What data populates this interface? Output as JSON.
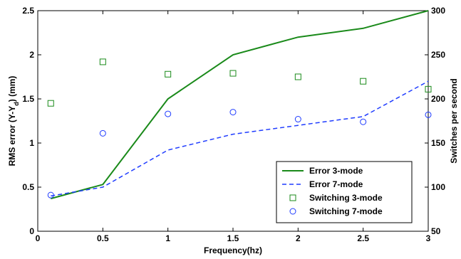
{
  "chart_data": {
    "type": "line",
    "xlabel": "Frequency(hz)",
    "ylabel_left": "RMS error (Y-Yₑ) (mm)",
    "ylabel_left_main": "RMS error (Y-Y",
    "ylabel_left_sub": "d",
    "ylabel_left_tail": ") (mm)",
    "ylabel_right": "Switches per second",
    "xlim": [
      0,
      3
    ],
    "ylim_left": [
      0,
      2.5
    ],
    "ylim_right": [
      50,
      300
    ],
    "x_ticks": [
      "0",
      "0.5",
      "1",
      "1.5",
      "2",
      "2.5",
      "3"
    ],
    "y_left_ticks": [
      "0",
      "0.5",
      "1",
      "1.5",
      "2",
      "2.5"
    ],
    "y_right_ticks": [
      "50",
      "100",
      "150",
      "200",
      "250",
      "300"
    ],
    "grid": false,
    "legend_position": "bottom-right",
    "series": [
      {
        "name": "Error 3-mode",
        "axis": "left",
        "style": "solid",
        "color": "#1a8a1a",
        "x": [
          0.1,
          0.5,
          1,
          1.5,
          2,
          2.5,
          3
        ],
        "y": [
          0.37,
          0.53,
          1.5,
          2.0,
          2.2,
          2.3,
          2.5
        ]
      },
      {
        "name": "Error 7-mode",
        "axis": "left",
        "style": "dashed",
        "color": "#1f3cff",
        "x": [
          0.1,
          0.5,
          1,
          1.5,
          2,
          2.5,
          3
        ],
        "y": [
          0.4,
          0.5,
          0.92,
          1.1,
          1.2,
          1.3,
          1.7
        ]
      },
      {
        "name": "Switching 3-mode",
        "axis": "right",
        "style": "square",
        "color": "#1a8a1a",
        "x": [
          0.1,
          0.5,
          1,
          1.5,
          2,
          2.5,
          3
        ],
        "y": [
          195,
          242,
          228,
          229,
          225,
          220,
          211
        ]
      },
      {
        "name": "Switching 7-mode",
        "axis": "right",
        "style": "circle",
        "color": "#1f3cff",
        "x": [
          0.1,
          0.5,
          1,
          1.5,
          2,
          2.5,
          3
        ],
        "y": [
          91,
          161,
          183,
          185,
          177,
          174,
          182
        ]
      }
    ]
  }
}
